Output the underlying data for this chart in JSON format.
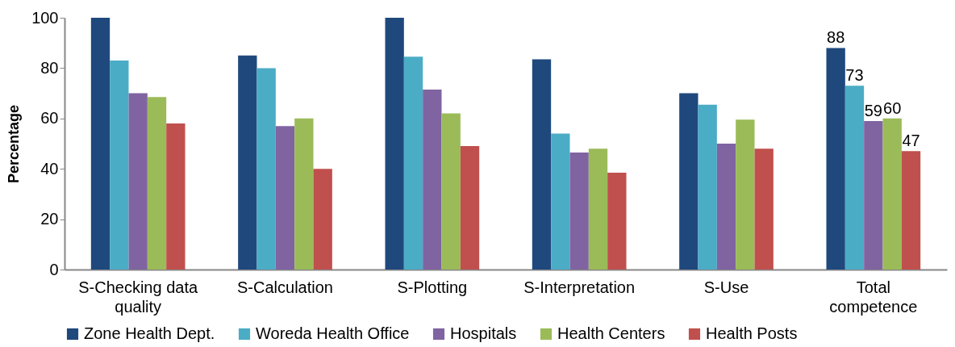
{
  "chart_data": {
    "type": "bar",
    "ylabel": "Percentage",
    "categories": [
      "S-Checking data quality",
      "S-Calculation",
      "S-Plotting",
      "S-Interpretation",
      "S-Use",
      "Total competence"
    ],
    "series": [
      {
        "name": "Zone Health Dept.",
        "color": "#1f497d",
        "values": [
          100,
          85,
          100,
          83.5,
          70,
          88
        ],
        "value_labels": [
          null,
          null,
          null,
          null,
          null,
          "88"
        ]
      },
      {
        "name": "Woreda Health Office",
        "color": "#4bacc6",
        "values": [
          83,
          80,
          84.5,
          54,
          65.5,
          73
        ],
        "value_labels": [
          null,
          null,
          null,
          null,
          null,
          "73"
        ]
      },
      {
        "name": "Hospitals",
        "color": "#8064a2",
        "values": [
          70,
          57,
          71.5,
          46.5,
          50,
          59
        ],
        "value_labels": [
          null,
          null,
          null,
          null,
          null,
          "59"
        ]
      },
      {
        "name": "Health Centers",
        "color": "#9bbb59",
        "values": [
          68.5,
          60,
          62,
          48,
          59.5,
          60
        ],
        "value_labels": [
          null,
          null,
          null,
          null,
          null,
          "60"
        ]
      },
      {
        "name": "Health Posts",
        "color": "#c0504d",
        "values": [
          58,
          40,
          49,
          38.5,
          48,
          47
        ],
        "value_labels": [
          null,
          null,
          null,
          null,
          null,
          "47"
        ]
      }
    ],
    "ylim": [
      0,
      100
    ],
    "yticks": [
      0,
      20,
      40,
      60,
      80,
      100
    ],
    "grid": false,
    "legend": "bottom"
  }
}
